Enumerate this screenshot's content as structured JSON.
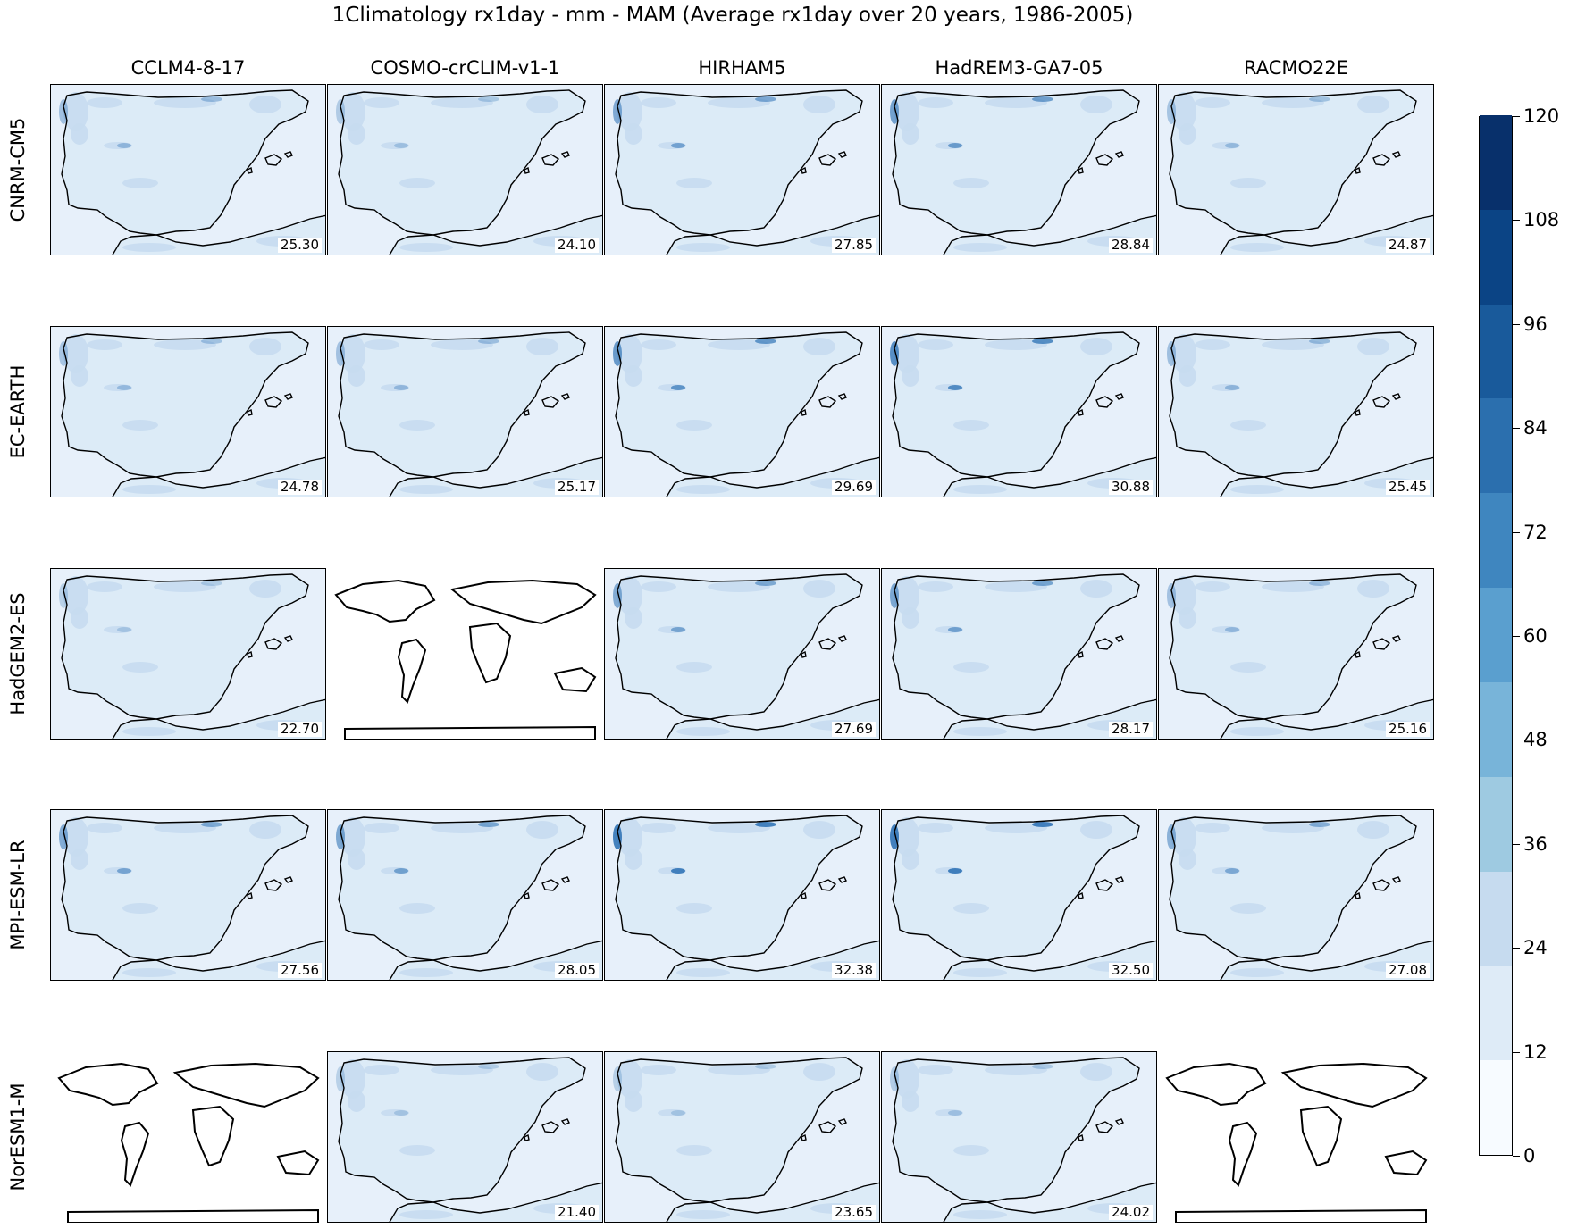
{
  "chart_data": {
    "type": "heatmap",
    "title": "1Climatology rx1day - mm - MAM (Average rx1day over 20 years, 1986-2005)",
    "columns": [
      "CCLM4-8-17",
      "COSMO-crCLIM-v1-1",
      "HIRHAM5",
      "HadREM3-GA7-05",
      "RACMO22E"
    ],
    "rows": [
      "CNRM-CM5",
      "EC-EARTH",
      "HadGEM2-ES",
      "MPI-ESM-LR",
      "NorESM1-M"
    ],
    "values": [
      [
        "25.30",
        "24.10",
        "27.85",
        "28.84",
        "24.87"
      ],
      [
        "24.78",
        "25.17",
        "29.69",
        "30.88",
        "25.45"
      ],
      [
        "22.70",
        null,
        "27.69",
        "28.17",
        "25.16"
      ],
      [
        "27.56",
        "28.05",
        "32.38",
        "32.50",
        "27.08"
      ],
      [
        null,
        "21.40",
        "23.65",
        "24.02",
        null
      ]
    ],
    "colorbar": {
      "ticks": [
        "0",
        "12",
        "24",
        "36",
        "48",
        "60",
        "72",
        "84",
        "96",
        "108",
        "120"
      ],
      "range": [
        0,
        120
      ],
      "colors": [
        "#f7fbff",
        "#deebf7",
        "#c6dbef",
        "#9ecae1",
        "#78b4d9",
        "#5a9fcf",
        "#3f86bf",
        "#2b6fae",
        "#195a9b",
        "#0b4485",
        "#08306b"
      ]
    }
  },
  "colors": {
    "land_light": "#dcebf7",
    "land_medium": "#c6dbef",
    "sea": "#e7f0fa",
    "rain_dark": "#2f72b5"
  },
  "icons": {
    "missing_panel": "world-coastline-map"
  }
}
